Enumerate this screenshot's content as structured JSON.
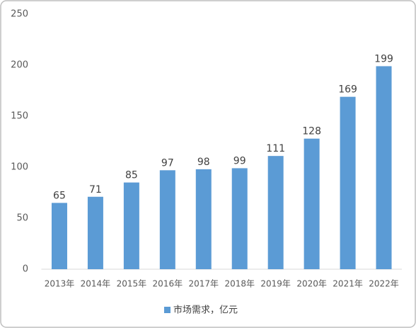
{
  "chart_data": {
    "type": "bar",
    "categories": [
      "2013年",
      "2014年",
      "2015年",
      "2016年",
      "2017年",
      "2018年",
      "2019年",
      "2020年",
      "2021年",
      "2022年"
    ],
    "series": [
      {
        "name": "市场需求，亿元",
        "color": "#5b9bd5",
        "values": [
          65,
          71,
          85,
          97,
          98,
          99,
          111,
          128,
          169,
          199
        ]
      }
    ],
    "ylim": [
      0,
      250
    ],
    "yticks": [
      0,
      50,
      100,
      150,
      200,
      250
    ],
    "grid": false,
    "legend": "bottom",
    "data_labels": true
  }
}
